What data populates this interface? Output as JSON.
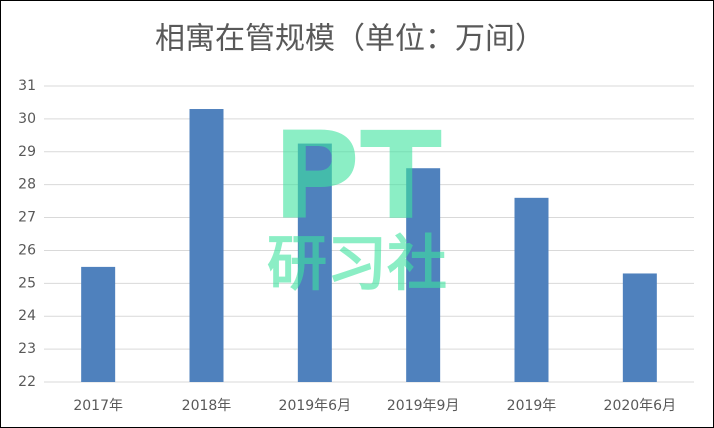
{
  "chart_data": {
    "type": "bar",
    "title": "相寓在管规模（单位：万间）",
    "categories": [
      "2017年",
      "2018年",
      "2019年6月",
      "2019年9月",
      "2019年",
      "2020年6月"
    ],
    "values": [
      25.5,
      30.3,
      29.25,
      28.5,
      27.6,
      25.3
    ],
    "color": "#4f81bd",
    "ylim": [
      22,
      31
    ],
    "yticks": [
      22,
      23,
      24,
      25,
      26,
      27,
      28,
      29,
      30,
      31
    ],
    "grid": true,
    "watermark": [
      "PT",
      "研习社"
    ]
  }
}
